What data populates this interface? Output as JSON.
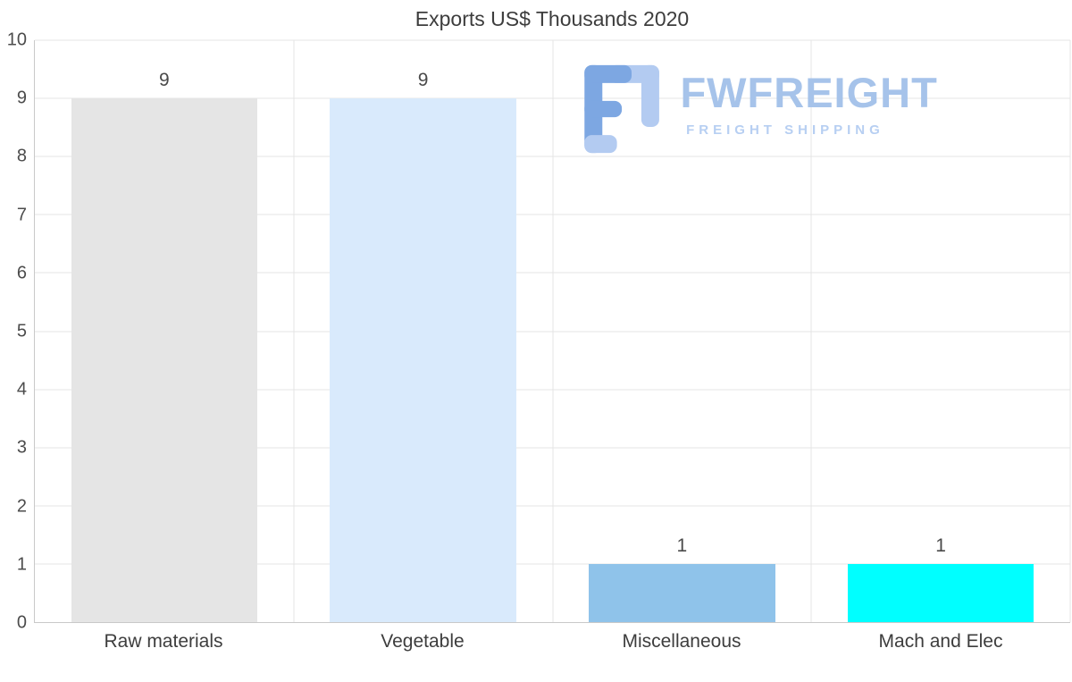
{
  "chart_data": {
    "type": "bar",
    "title": "Exports US$ Thousands 2020",
    "categories": [
      "Raw materials",
      "Vegetable",
      "Miscellaneous",
      "Mach and Elec"
    ],
    "values": [
      9,
      9,
      1,
      1
    ],
    "bar_colors": [
      "#e5e5e5",
      "#d9eafc",
      "#8fc3ea",
      "#00ffff"
    ],
    "xlabel": "",
    "ylabel": "",
    "ylim": [
      0,
      10
    ],
    "ytick_step": 1,
    "grid": true,
    "legend": false,
    "grid_color": "#e4e4e4",
    "axis_color": "#c9c9c9"
  },
  "watermark": {
    "brand": "FWFREIGHT",
    "tagline": "FREIGHT SHIPPING",
    "brand_color": "#a6c3ea",
    "icon": "fwfreight-f-bracket-icon"
  }
}
